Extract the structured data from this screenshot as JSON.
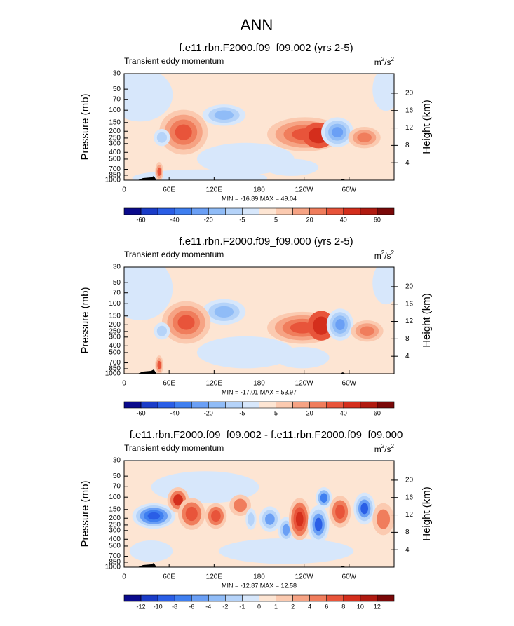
{
  "title": "ANN",
  "chart_data": [
    {
      "type": "contour",
      "title": "f.e11.rbn.F2000.f09_f09.002 (yrs 2-5)",
      "subtitle": "Transient eddy momentum",
      "units": [
        "m",
        "2",
        "/s",
        "2"
      ],
      "ylabel": "Pressure (mb)",
      "y2label": "Height (km)",
      "xlim": [
        0,
        360
      ],
      "xticks": [
        0,
        {
          "value": 60,
          "label": "60E"
        },
        {
          "value": 120,
          "label": "120E"
        },
        180,
        {
          "value": 240,
          "label": "120W"
        },
        {
          "value": 300,
          "label": "60W"
        }
      ],
      "ylim": [
        1000,
        30
      ],
      "log_scale": true,
      "yticks": [
        30,
        50,
        70,
        100,
        150,
        200,
        250,
        300,
        400,
        500,
        700,
        850,
        1000
      ],
      "y2lim": [
        0,
        24.5
      ],
      "y2ticks": [
        4,
        8,
        12,
        16,
        20
      ],
      "stats": "MIN = -16.89  MAX = 49.04",
      "colorbar": {
        "levels": [
          -60,
          -40,
          -20,
          -5,
          5,
          20,
          40,
          60
        ],
        "colors": [
          "#0a0a8c",
          "#1a3cc8",
          "#2a5ee6",
          "#3f7ff0",
          "#6a9ff5",
          "#90bcf7",
          "#b5d3f9",
          "#d7e7fb",
          "#fde5d3",
          "#fbcab0",
          "#f6a384",
          "#f07d5c",
          "#e8543a",
          "#d42e1c",
          "#b01a10",
          "#7a0808"
        ]
      }
    },
    {
      "type": "contour",
      "title": "f.e11.rbn.F2000.f09_f09.000 (yrs 2-5)",
      "subtitle": "Transient eddy momentum",
      "units": [
        "m",
        "2",
        "/s",
        "2"
      ],
      "ylabel": "Pressure (mb)",
      "y2label": "Height (km)",
      "xlim": [
        0,
        360
      ],
      "xticks": [
        0,
        {
          "value": 60,
          "label": "60E"
        },
        {
          "value": 120,
          "label": "120E"
        },
        180,
        {
          "value": 240,
          "label": "120W"
        },
        {
          "value": 300,
          "label": "60W"
        }
      ],
      "ylim": [
        1000,
        30
      ],
      "log_scale": true,
      "yticks": [
        30,
        50,
        70,
        100,
        150,
        200,
        250,
        300,
        400,
        500,
        700,
        850,
        1000
      ],
      "y2lim": [
        0,
        24.5
      ],
      "y2ticks": [
        4,
        8,
        12,
        16,
        20
      ],
      "stats": "MIN = -17.01  MAX = 53.97",
      "colorbar": {
        "levels": [
          -60,
          -40,
          -20,
          -5,
          5,
          20,
          40,
          60
        ],
        "colors": [
          "#0a0a8c",
          "#1a3cc8",
          "#2a5ee6",
          "#3f7ff0",
          "#6a9ff5",
          "#90bcf7",
          "#b5d3f9",
          "#d7e7fb",
          "#fde5d3",
          "#fbcab0",
          "#f6a384",
          "#f07d5c",
          "#e8543a",
          "#d42e1c",
          "#b01a10",
          "#7a0808"
        ]
      }
    },
    {
      "type": "contour",
      "title": "f.e11.rbn.F2000.f09_f09.002 - f.e11.rbn.F2000.f09_f09.000",
      "subtitle": "Transient eddy momentum",
      "units": [
        "m",
        "2",
        "/s",
        "2"
      ],
      "ylabel": "Pressure (mb)",
      "y2label": "Height (km)",
      "xlim": [
        0,
        360
      ],
      "xticks": [
        0,
        {
          "value": 60,
          "label": "60E"
        },
        {
          "value": 120,
          "label": "120E"
        },
        180,
        {
          "value": 240,
          "label": "120W"
        },
        {
          "value": 300,
          "label": "60W"
        }
      ],
      "ylim": [
        1000,
        30
      ],
      "log_scale": true,
      "yticks": [
        30,
        50,
        70,
        100,
        150,
        200,
        250,
        300,
        400,
        500,
        700,
        850,
        1000
      ],
      "y2lim": [
        0,
        24.5
      ],
      "y2ticks": [
        4,
        8,
        12,
        16,
        20
      ],
      "stats": "MIN = -12.87  MAX = 12.58",
      "colorbar": {
        "levels": [
          -12,
          -10,
          -8,
          -6,
          -4,
          -2,
          -1,
          0,
          1,
          2,
          4,
          6,
          8,
          10,
          12
        ],
        "colors": [
          "#0a0a8c",
          "#1a3cc8",
          "#2a5ee6",
          "#3f7ff0",
          "#6a9ff5",
          "#90bcf7",
          "#b5d3f9",
          "#d7e7fb",
          "#fde5d3",
          "#fbcab0",
          "#f6a384",
          "#f07d5c",
          "#e8543a",
          "#d42e1c",
          "#b01a10",
          "#7a0808"
        ]
      }
    }
  ]
}
